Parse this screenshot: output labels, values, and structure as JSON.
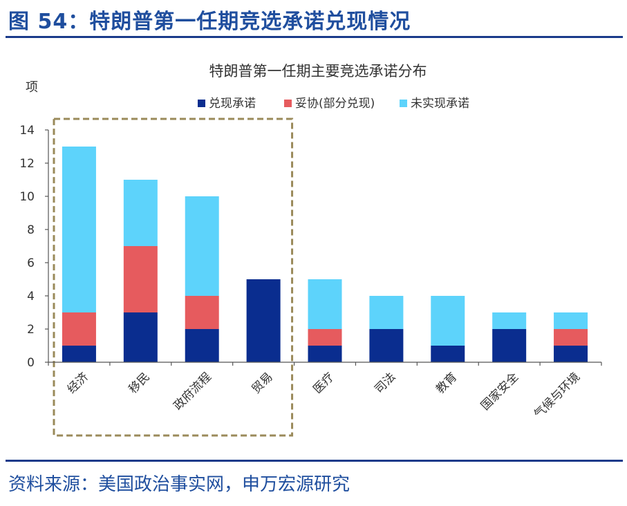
{
  "figure": {
    "title": "图 54：特朗普第一任期竞选承诺兑现情况",
    "source": "资料来源：美国政治事实网，申万宏源研究"
  },
  "chart_data": {
    "type": "bar",
    "stacked": true,
    "title": "特朗普第一任期主要竞选承诺分布",
    "ylabel": "项",
    "xlabel": "",
    "ylim": [
      0,
      14
    ],
    "yticks": [
      0,
      2,
      4,
      6,
      8,
      10,
      12,
      14
    ],
    "categories": [
      "经济",
      "移民",
      "政府流程",
      "贸易",
      "医疗",
      "司法",
      "教育",
      "国家安全",
      "气候与环境"
    ],
    "series": [
      {
        "name": "兑现承诺",
        "color": "#0a2d8f",
        "values": [
          1,
          3,
          2,
          5,
          1,
          2,
          1,
          2,
          1
        ]
      },
      {
        "name": "妥协(部分兑现)",
        "color": "#e65b5e",
        "values": [
          2,
          4,
          2,
          0,
          1,
          0,
          0,
          0,
          1
        ]
      },
      {
        "name": "未实现承诺",
        "color": "#5dd3fb",
        "values": [
          10,
          4,
          6,
          0,
          3,
          2,
          3,
          1,
          1
        ]
      }
    ],
    "legend_position": "top",
    "highlight": {
      "categories": [
        "经济",
        "移民",
        "政府流程",
        "贸易"
      ],
      "style": "dashed-box",
      "color": "#9a8a5a"
    }
  }
}
